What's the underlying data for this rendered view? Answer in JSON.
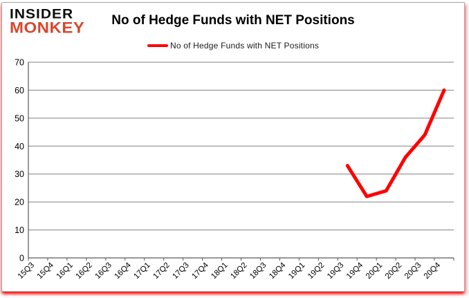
{
  "brand": {
    "line1": "INSIDER",
    "line2": "MONKEY"
  },
  "colors": {
    "line": "#ff0000",
    "grid": "#808080",
    "axis": "#595959",
    "label_text": "#000000",
    "brand_black": "#0d0d0d",
    "brand_red": "#d9472e",
    "card_border": "#a6a6a6",
    "glow_red": "#ff0000"
  },
  "chart_data": {
    "type": "line",
    "title": "No of Hedge Funds with NET Positions",
    "categories": [
      "15Q3",
      "15Q4",
      "16Q1",
      "16Q2",
      "16Q3",
      "16Q4",
      "17Q1",
      "17Q2",
      "17Q3",
      "17Q4",
      "18Q1",
      "18Q2",
      "18Q3",
      "18Q4",
      "19Q1",
      "19Q2",
      "19Q3",
      "19Q4",
      "20Q1",
      "20Q2",
      "20Q3",
      "20Q4"
    ],
    "series": [
      {
        "name": "No of Hedge Funds with NET Positions",
        "color": "#ff0000",
        "values": [
          null,
          null,
          null,
          null,
          null,
          null,
          null,
          null,
          null,
          null,
          null,
          null,
          null,
          null,
          null,
          null,
          33,
          22,
          24,
          36,
          44,
          60
        ]
      }
    ],
    "xlabel": "",
    "ylabel": "",
    "ylim": [
      0,
      70
    ],
    "ytick_step": 10,
    "grid": true,
    "legend_position": "top"
  }
}
